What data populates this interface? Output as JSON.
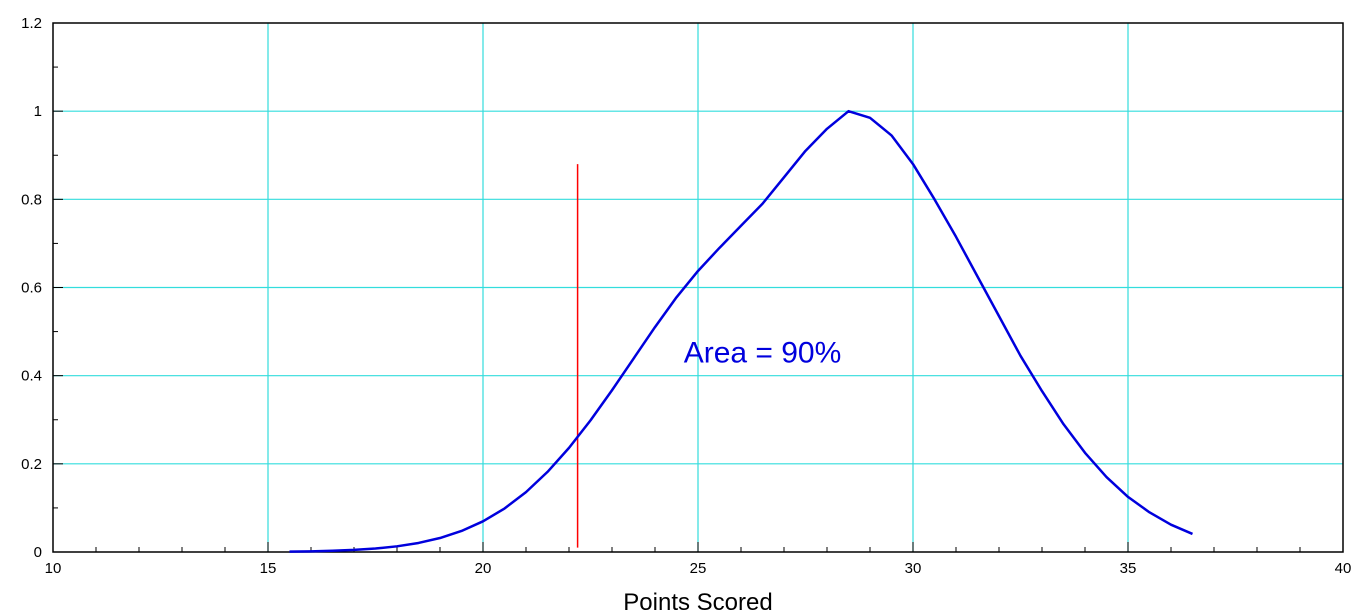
{
  "chart_data": {
    "type": "line",
    "title": "",
    "xlabel": "Points Scored",
    "ylabel": "",
    "xlim": [
      10,
      40
    ],
    "ylim": [
      0,
      1.2
    ],
    "x_major_ticks": [
      10,
      15,
      20,
      25,
      30,
      35,
      40
    ],
    "x_minor_step": 1,
    "y_major_ticks": [
      0,
      0.2,
      0.4,
      0.6,
      0.8,
      1,
      1.2
    ],
    "y_minor_step": 0.1,
    "grid": true,
    "series": [
      {
        "type": "line",
        "x_start": 15.5,
        "x_end": 36.5,
        "x_step": 0.5,
        "y_values": [
          0.0008,
          0.0015,
          0.0027,
          0.0047,
          0.0079,
          0.0129,
          0.0205,
          0.0317,
          0.0477,
          0.0696,
          0.0986,
          0.1358,
          0.1817,
          0.2362,
          0.2985,
          0.3669,
          0.4386,
          0.5102,
          0.5778,
          0.6375,
          0.69,
          0.74,
          0.79,
          0.85,
          0.91,
          0.96,
          1.0,
          0.985,
          0.945,
          0.88,
          0.8,
          0.715,
          0.625,
          0.535,
          0.445,
          0.365,
          0.29,
          0.225,
          0.17,
          0.125,
          0.09,
          0.062,
          0.041
        ]
      }
    ],
    "vertical_marker": {
      "x": 22.2,
      "y_top": 0.88,
      "y_bottom": 0.01
    },
    "annotation": {
      "text": "Area = 90%",
      "x": 26.5,
      "y": 0.43
    }
  },
  "colors": {
    "curve": "#0000dd",
    "marker": "#ff0000",
    "grid": "#33dddd",
    "annotation": "#0000dd",
    "axis": "#000000"
  }
}
